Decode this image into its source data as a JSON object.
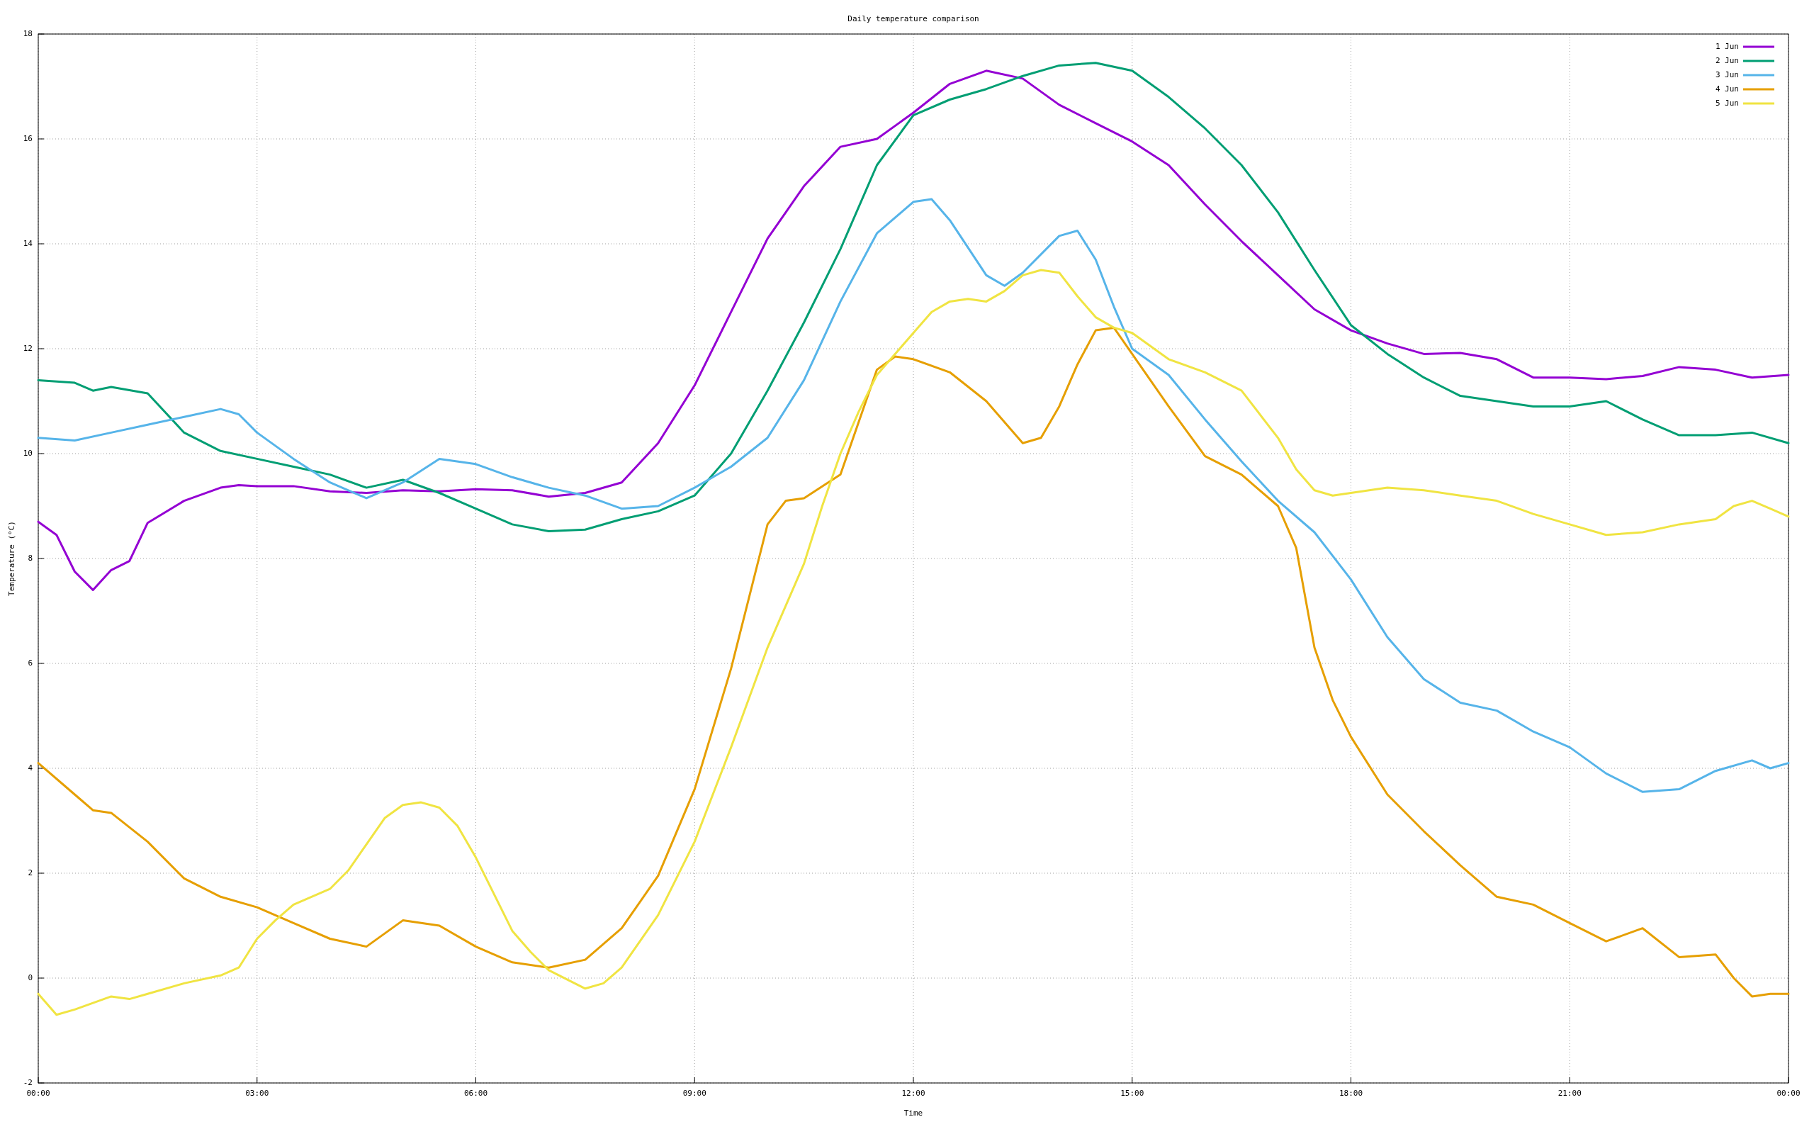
{
  "chart_data": {
    "type": "line",
    "title": "Daily temperature comparison",
    "xlabel": "Time",
    "ylabel": "Temperature (°C)",
    "xlim": [
      0,
      24
    ],
    "xticks": [
      {
        "value": 0,
        "label": "00:00"
      },
      {
        "value": 3,
        "label": "03:00"
      },
      {
        "value": 6,
        "label": "06:00"
      },
      {
        "value": 9,
        "label": "09:00"
      },
      {
        "value": 12,
        "label": "12:00"
      },
      {
        "value": 15,
        "label": "15:00"
      },
      {
        "value": 18,
        "label": "18:00"
      },
      {
        "value": 21,
        "label": "21:00"
      },
      {
        "value": 24,
        "label": "00:00"
      }
    ],
    "ylim": [
      -2,
      18
    ],
    "yticks": [
      -2,
      0,
      2,
      4,
      6,
      8,
      10,
      12,
      14,
      16,
      18
    ],
    "grid": true,
    "legend": "top right",
    "series": [
      {
        "name": "1 Jun",
        "color": "#9400d3",
        "x": [
          0,
          0.25,
          0.5,
          0.75,
          1,
          1.25,
          1.5,
          2,
          2.5,
          2.75,
          3,
          3.5,
          4,
          4.5,
          5,
          5.5,
          6,
          6.5,
          7,
          7.5,
          8,
          8.5,
          9,
          9.5,
          10,
          10.5,
          11,
          11.5,
          12,
          12.5,
          13,
          13.5,
          14,
          14.5,
          15,
          15.5,
          16,
          16.5,
          17,
          17.5,
          18,
          18.5,
          19,
          19.5,
          20,
          20.5,
          21,
          21.5,
          22,
          22.5,
          23,
          23.5,
          24
        ],
        "values": [
          8.7,
          8.45,
          7.75,
          7.4,
          7.78,
          7.95,
          8.68,
          9.1,
          9.35,
          9.4,
          9.38,
          9.38,
          9.28,
          9.25,
          9.3,
          9.28,
          9.32,
          9.3,
          9.18,
          9.25,
          9.45,
          10.2,
          11.3,
          12.7,
          14.1,
          15.1,
          15.85,
          16.0,
          16.5,
          17.05,
          17.3,
          17.15,
          16.65,
          16.3,
          15.95,
          15.5,
          14.75,
          14.05,
          13.4,
          12.75,
          12.35,
          12.1,
          11.9,
          11.92,
          11.8,
          11.45,
          11.45,
          11.42,
          11.48,
          11.65,
          11.6,
          11.45,
          11.5
        ]
      },
      {
        "name": "2 Jun",
        "color": "#009e73",
        "x": [
          0,
          0.5,
          0.75,
          1,
          1.5,
          2,
          2.5,
          3,
          3.5,
          4,
          4.5,
          5,
          5.5,
          6,
          6.5,
          7,
          7.5,
          8,
          8.5,
          9,
          9.5,
          10,
          10.5,
          11,
          11.5,
          12,
          12.5,
          13,
          13.5,
          14,
          14.5,
          15,
          15.5,
          16,
          16.5,
          17,
          17.5,
          18,
          18.5,
          19,
          19.5,
          20,
          20.5,
          21,
          21.5,
          22,
          22.5,
          23,
          23.5,
          24
        ],
        "values": [
          11.4,
          11.35,
          11.2,
          11.27,
          11.15,
          10.4,
          10.05,
          9.9,
          9.75,
          9.6,
          9.35,
          9.5,
          9.25,
          8.95,
          8.65,
          8.52,
          8.55,
          8.75,
          8.9,
          9.2,
          10.0,
          11.2,
          12.5,
          13.9,
          15.5,
          16.45,
          16.75,
          16.95,
          17.2,
          17.4,
          17.45,
          17.3,
          16.8,
          16.2,
          15.5,
          14.6,
          13.5,
          12.45,
          11.9,
          11.45,
          11.1,
          11.0,
          10.9,
          10.9,
          11.0,
          10.65,
          10.35,
          10.35,
          10.4,
          10.2
        ]
      },
      {
        "name": "3 Jun",
        "color": "#56b4e9",
        "x": [
          0,
          0.5,
          1,
          1.5,
          2,
          2.5,
          2.75,
          3,
          3.5,
          4,
          4.5,
          5,
          5.5,
          6,
          6.5,
          7,
          7.5,
          8,
          8.5,
          9,
          9.5,
          10,
          10.5,
          11,
          11.5,
          12,
          12.25,
          12.5,
          13,
          13.25,
          13.5,
          14,
          14.25,
          14.5,
          14.75,
          15,
          15.5,
          16,
          16.5,
          17,
          17.5,
          18,
          18.5,
          19,
          19.5,
          20,
          20.5,
          21,
          21.5,
          22,
          22.5,
          23,
          23.5,
          23.75,
          24
        ],
        "values": [
          10.3,
          10.25,
          10.4,
          10.55,
          10.7,
          10.85,
          10.75,
          10.4,
          9.9,
          9.45,
          9.15,
          9.45,
          9.9,
          9.8,
          9.55,
          9.35,
          9.2,
          8.95,
          9.0,
          9.35,
          9.75,
          10.3,
          11.4,
          12.9,
          14.2,
          14.8,
          14.85,
          14.45,
          13.4,
          13.2,
          13.45,
          14.15,
          14.25,
          13.7,
          12.8,
          12.0,
          11.5,
          10.65,
          9.85,
          9.1,
          8.5,
          7.6,
          6.5,
          5.7,
          5.25,
          5.1,
          4.7,
          4.4,
          3.9,
          3.55,
          3.6,
          3.95,
          4.15,
          4.0,
          4.1
        ]
      },
      {
        "name": "4 Jun",
        "color": "#e69f00",
        "x": [
          0,
          0.5,
          0.75,
          1,
          1.5,
          2,
          2.5,
          3,
          3.5,
          4,
          4.5,
          5,
          5.5,
          6,
          6.5,
          7,
          7.5,
          8,
          8.5,
          9,
          9.5,
          10,
          10.25,
          10.5,
          11,
          11.5,
          11.75,
          12,
          12.5,
          13,
          13.5,
          13.75,
          14,
          14.25,
          14.5,
          14.75,
          15,
          15.5,
          16,
          16.5,
          17,
          17.25,
          17.5,
          17.75,
          18,
          18.5,
          19,
          19.5,
          20,
          20.5,
          21,
          21.5,
          22,
          22.5,
          23,
          23.25,
          23.5,
          23.75,
          24
        ],
        "values": [
          4.1,
          3.5,
          3.2,
          3.15,
          2.6,
          1.9,
          1.55,
          1.35,
          1.05,
          0.75,
          0.6,
          1.1,
          1.0,
          0.6,
          0.3,
          0.2,
          0.35,
          0.95,
          1.95,
          3.6,
          5.9,
          8.65,
          9.1,
          9.15,
          9.6,
          11.6,
          11.85,
          11.8,
          11.55,
          11.0,
          10.2,
          10.3,
          10.9,
          11.7,
          12.35,
          12.4,
          11.9,
          10.9,
          9.95,
          9.6,
          9.0,
          8.2,
          6.3,
          5.3,
          4.6,
          3.5,
          2.8,
          2.15,
          1.55,
          1.4,
          1.05,
          0.7,
          0.95,
          0.4,
          0.45,
          0.0,
          -0.35,
          -0.3,
          -0.3
        ]
      },
      {
        "name": "5 Jun",
        "color": "#f0e442",
        "x": [
          0,
          0.25,
          0.5,
          1,
          1.25,
          1.5,
          2,
          2.5,
          2.75,
          3,
          3.25,
          3.5,
          4,
          4.25,
          4.5,
          4.75,
          5,
          5.25,
          5.5,
          5.75,
          6,
          6.5,
          6.75,
          7,
          7.5,
          7.75,
          8,
          8.5,
          9,
          9.5,
          10,
          10.5,
          10.75,
          11,
          11.25,
          11.5,
          12,
          12.25,
          12.5,
          12.75,
          13,
          13.25,
          13.5,
          13.75,
          14,
          14.25,
          14.5,
          14.75,
          15,
          15.5,
          16,
          16.5,
          17,
          17.25,
          17.5,
          17.75,
          18,
          18.5,
          19,
          19.5,
          20,
          20.5,
          21,
          21.5,
          22,
          22.5,
          23,
          23.25,
          23.5,
          23.75,
          24
        ],
        "values": [
          -0.3,
          -0.7,
          -0.6,
          -0.35,
          -0.4,
          -0.3,
          -0.1,
          0.05,
          0.2,
          0.75,
          1.1,
          1.4,
          1.7,
          2.05,
          2.55,
          3.05,
          3.3,
          3.35,
          3.25,
          2.9,
          2.3,
          0.9,
          0.5,
          0.15,
          -0.2,
          -0.1,
          0.2,
          1.2,
          2.6,
          4.4,
          6.3,
          7.9,
          9.0,
          10.0,
          10.8,
          11.5,
          12.3,
          12.7,
          12.9,
          12.95,
          12.9,
          13.1,
          13.4,
          13.5,
          13.45,
          13.0,
          12.6,
          12.4,
          12.3,
          11.8,
          11.55,
          11.2,
          10.3,
          9.7,
          9.3,
          9.2,
          9.25,
          9.35,
          9.3,
          9.2,
          9.1,
          8.85,
          8.65,
          8.45,
          8.5,
          8.65,
          8.75,
          9.0,
          9.1,
          8.95,
          8.8
        ]
      }
    ]
  }
}
